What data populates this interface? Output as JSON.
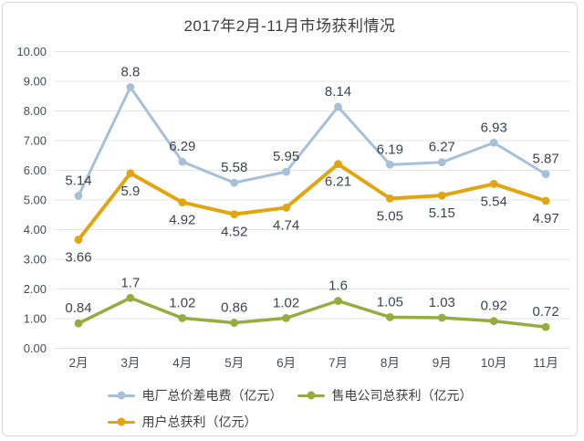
{
  "chart_data": {
    "type": "line",
    "title": "2017年2月-11月市场获利情况",
    "categories": [
      "2月",
      "3月",
      "4月",
      "5月",
      "6月",
      "7月",
      "8月",
      "9月",
      "10月",
      "11月"
    ],
    "series": [
      {
        "name": "电厂总价差电费（亿元）",
        "color": "#a7c0d9",
        "label_position": "above",
        "values": [
          5.14,
          8.8,
          6.29,
          5.58,
          5.95,
          8.14,
          6.19,
          6.27,
          6.93,
          5.87
        ]
      },
      {
        "name": "用户总获利（亿元）",
        "color": "#e3a50f",
        "label_position": "below",
        "values": [
          3.66,
          5.9,
          4.92,
          4.52,
          4.74,
          6.21,
          5.05,
          5.15,
          5.54,
          4.97
        ]
      },
      {
        "name": "售电公司总获利（亿元）",
        "color": "#96ac40",
        "label_position": "above",
        "values": [
          0.84,
          1.7,
          1.02,
          0.86,
          1.02,
          1.6,
          1.05,
          1.03,
          0.92,
          0.72
        ]
      }
    ],
    "ylim": [
      0,
      10
    ],
    "ytick_step": 1,
    "ytick_labels": [
      "10.00",
      "9.00",
      "8.00",
      "7.00",
      "6.00",
      "5.00",
      "4.00",
      "3.00",
      "2.00",
      "1.00",
      "0.00"
    ],
    "grid": "horizontal",
    "gridline_color": "#e4e4e4",
    "legend_position": "bottom"
  },
  "legend": {
    "items": [
      {
        "label": "电厂总价差电费（亿元）",
        "color": "#a7c0d9"
      },
      {
        "label": "售电公司总获利（亿元）",
        "color": "#96ac40"
      },
      {
        "label": "用户总获利（亿元）",
        "color": "#e3a50f"
      }
    ]
  }
}
